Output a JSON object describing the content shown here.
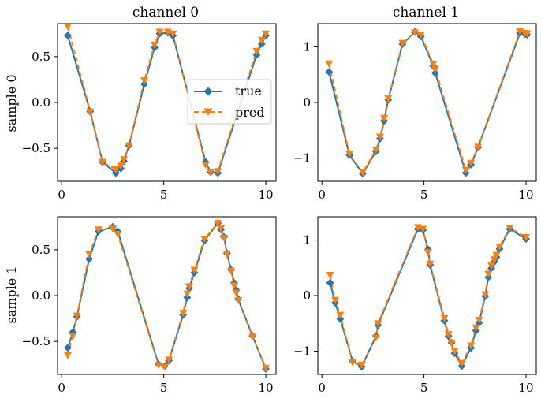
{
  "colors": {
    "true": "#1f77b4",
    "pred": "#ff7f0e",
    "axis": "#000000",
    "legend_border": "#cccccc"
  },
  "column_titles": [
    "channel 0",
    "channel 1"
  ],
  "row_labels": [
    "sample 0",
    "sample 1"
  ],
  "legend": {
    "placement": "right of top-left panel",
    "entries": [
      "true",
      "pred"
    ]
  },
  "chart_data": [
    {
      "type": "line",
      "panel": "sample 0 / channel 0",
      "xlim": [
        -0.2,
        10.5
      ],
      "ylim": [
        -0.86,
        0.86
      ],
      "xticks": [
        0,
        5,
        10
      ],
      "yticks": [
        -0.5,
        0,
        0.5
      ],
      "xtick_labels": [
        "0",
        "5",
        "10"
      ],
      "ytick_labels": [
        "−0.5",
        "0.0",
        "0.5"
      ],
      "series": [
        {
          "name": "true",
          "x": [
            0.3,
            1.4,
            2.0,
            2.65,
            2.9,
            3.05,
            3.3,
            4.05,
            4.55,
            4.8,
            5.2,
            5.45,
            7.05,
            7.3,
            7.65,
            9.55,
            9.8,
            10.0
          ],
          "y": [
            0.73,
            -0.1,
            -0.65,
            -0.77,
            -0.72,
            -0.64,
            -0.47,
            0.2,
            0.6,
            0.75,
            0.76,
            0.73,
            -0.65,
            -0.76,
            -0.77,
            0.52,
            0.64,
            0.73
          ]
        },
        {
          "name": "pred",
          "x": [
            0.3,
            1.4,
            2.0,
            2.65,
            2.9,
            3.05,
            3.3,
            4.05,
            4.55,
            4.8,
            5.2,
            5.45,
            7.05,
            7.3,
            7.65,
            9.55,
            9.8,
            10.0
          ],
          "y": [
            0.83,
            -0.1,
            -0.65,
            -0.73,
            -0.69,
            -0.62,
            -0.47,
            0.24,
            0.63,
            0.77,
            0.77,
            0.75,
            -0.68,
            -0.76,
            -0.75,
            0.56,
            0.68,
            0.75
          ]
        }
      ]
    },
    {
      "type": "line",
      "panel": "sample 0 / channel 1",
      "xlim": [
        -0.2,
        10.5
      ],
      "ylim": [
        -1.42,
        1.42
      ],
      "xticks": [
        0,
        5,
        10
      ],
      "yticks": [
        -1,
        0,
        1
      ],
      "xtick_labels": [
        "0",
        "5",
        "10"
      ],
      "ytick_labels": [
        "−1",
        "0",
        "1"
      ],
      "series": [
        {
          "name": "true",
          "x": [
            0.35,
            1.35,
            2.0,
            2.65,
            2.85,
            3.05,
            3.25,
            3.95,
            4.55,
            4.85,
            5.45,
            5.55,
            7.05,
            7.3,
            7.65,
            9.7,
            9.95,
            10.05
          ],
          "y": [
            0.55,
            -0.95,
            -1.28,
            -0.88,
            -0.65,
            -0.33,
            0.05,
            1.05,
            1.27,
            1.19,
            0.66,
            0.53,
            -1.27,
            -1.12,
            -0.81,
            1.25,
            1.23,
            1.22
          ]
        },
        {
          "name": "pred",
          "x": [
            0.35,
            1.35,
            2.0,
            2.65,
            2.85,
            3.05,
            3.25,
            3.95,
            4.55,
            4.85,
            5.45,
            5.55,
            7.05,
            7.3,
            7.65,
            9.7,
            9.95,
            10.05
          ],
          "y": [
            0.7,
            -0.93,
            -1.26,
            -0.85,
            -0.62,
            -0.28,
            0.07,
            1.07,
            1.26,
            1.22,
            0.69,
            0.6,
            -1.22,
            -1.09,
            -0.8,
            1.28,
            1.25,
            1.24
          ]
        }
      ]
    },
    {
      "type": "line",
      "panel": "sample 1 / channel 0",
      "xlim": [
        -0.2,
        10.5
      ],
      "ylim": [
        -0.86,
        0.86
      ],
      "xticks": [
        0,
        5,
        10
      ],
      "yticks": [
        -0.5,
        0,
        0.5
      ],
      "xtick_labels": [
        "0",
        "5",
        "10"
      ],
      "ytick_labels": [
        "−0.5",
        "0.0",
        "0.5"
      ],
      "series": [
        {
          "name": "true",
          "x": [
            0.3,
            0.55,
            0.75,
            1.35,
            1.8,
            2.5,
            2.75,
            4.75,
            5.05,
            5.25,
            5.95,
            6.15,
            6.25,
            6.5,
            7.0,
            7.65,
            7.8,
            7.95,
            8.1,
            8.3,
            8.45,
            8.55,
            8.65,
            9.35,
            10.0
          ],
          "y": [
            -0.57,
            -0.4,
            -0.23,
            0.4,
            0.7,
            0.75,
            0.7,
            -0.75,
            -0.77,
            -0.71,
            -0.21,
            -0.02,
            0.08,
            0.25,
            0.6,
            0.79,
            0.72,
            0.64,
            0.46,
            0.28,
            0.14,
            0.06,
            -0.04,
            -0.44,
            -0.8
          ]
        },
        {
          "name": "pred",
          "x": [
            0.3,
            0.55,
            0.75,
            1.35,
            1.8,
            2.5,
            2.75,
            4.75,
            5.05,
            5.25,
            5.95,
            6.15,
            6.25,
            6.5,
            7.0,
            7.65,
            7.8,
            7.95,
            8.1,
            8.3,
            8.45,
            8.55,
            8.65,
            9.35,
            10.0
          ],
          "y": [
            -0.65,
            -0.44,
            -0.22,
            0.45,
            0.72,
            0.73,
            0.67,
            -0.76,
            -0.78,
            -0.7,
            -0.19,
            0.02,
            0.1,
            0.28,
            0.62,
            0.79,
            0.73,
            0.63,
            0.45,
            0.27,
            0.11,
            0.03,
            -0.05,
            -0.45,
            -0.79
          ]
        }
      ]
    },
    {
      "type": "line",
      "panel": "sample 1 / channel 1",
      "xlim": [
        -0.2,
        10.5
      ],
      "ylim": [
        -1.42,
        1.42
      ],
      "xticks": [
        0,
        5,
        10
      ],
      "yticks": [
        -1,
        0,
        1
      ],
      "xtick_labels": [
        "0",
        "5",
        "10"
      ],
      "ytick_labels": [
        "−1",
        "0",
        "1"
      ],
      "series": [
        {
          "name": "true",
          "x": [
            0.4,
            0.65,
            0.9,
            1.5,
            1.95,
            2.65,
            2.75,
            4.7,
            4.95,
            5.2,
            5.3,
            6.0,
            6.2,
            6.35,
            6.5,
            6.85,
            7.3,
            7.55,
            7.7,
            8.0,
            8.15,
            8.3,
            8.45,
            8.55,
            8.7,
            9.2,
            10.0
          ],
          "y": [
            0.23,
            -0.13,
            -0.42,
            -1.18,
            -1.28,
            -0.73,
            -0.53,
            1.2,
            1.18,
            0.83,
            0.55,
            -0.45,
            -0.73,
            -0.85,
            -1.04,
            -1.27,
            -0.94,
            -0.63,
            -0.49,
            -0.01,
            0.33,
            0.49,
            0.61,
            0.69,
            0.84,
            1.2,
            1.02
          ]
        },
        {
          "name": "pred",
          "x": [
            0.4,
            0.65,
            0.9,
            1.5,
            1.95,
            2.65,
            2.75,
            4.7,
            4.95,
            5.2,
            5.3,
            6.0,
            6.2,
            6.35,
            6.5,
            6.85,
            7.3,
            7.55,
            7.7,
            8.0,
            8.15,
            8.3,
            8.45,
            8.55,
            8.7,
            9.2,
            10.0
          ],
          "y": [
            0.37,
            -0.08,
            -0.35,
            -1.2,
            -1.25,
            -0.76,
            -0.5,
            1.23,
            1.2,
            0.78,
            0.57,
            -0.41,
            -0.7,
            -0.86,
            -1.0,
            -1.22,
            -0.9,
            -0.58,
            -0.44,
            0.02,
            0.39,
            0.54,
            0.65,
            0.73,
            0.88,
            1.22,
            1.05
          ]
        }
      ]
    }
  ]
}
